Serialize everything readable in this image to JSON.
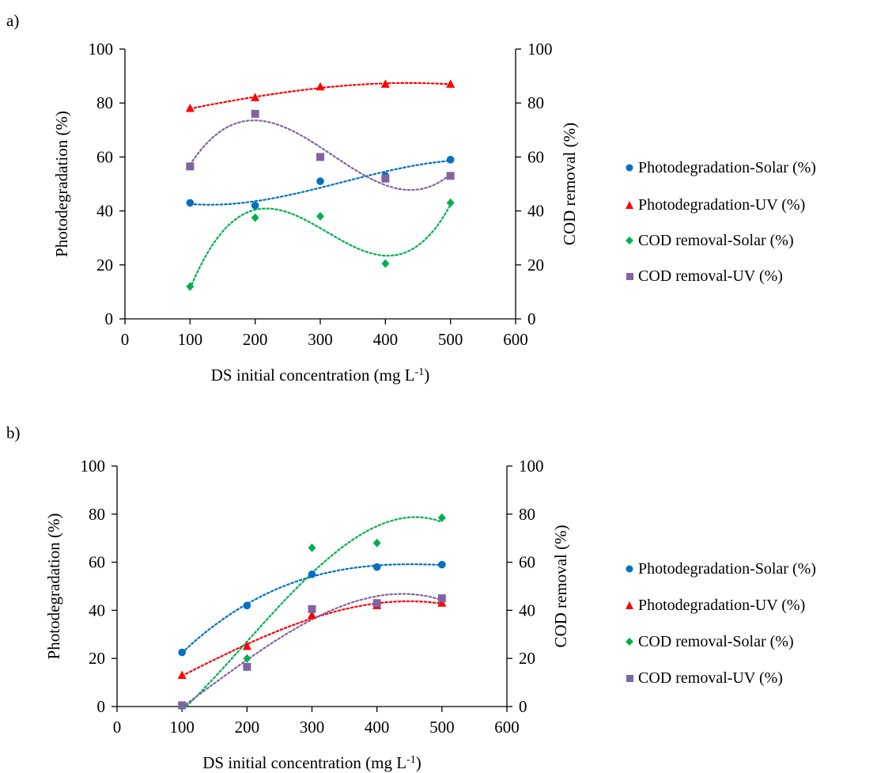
{
  "panels": [
    {
      "label": "a)"
    },
    {
      "label": "b)"
    }
  ],
  "legend": {
    "items": [
      {
        "label": "Photodegradation-Solar (%)",
        "color": "#0070c0",
        "marker": "circle"
      },
      {
        "label": "Photodegradation-UV (%)",
        "color": "#ff0000",
        "marker": "triangle"
      },
      {
        "label": "COD removal-Solar (%)",
        "color": "#00b050",
        "marker": "diamond"
      },
      {
        "label": "COD removal-UV (%)",
        "color": "#8064a2",
        "marker": "square"
      }
    ]
  },
  "chart_data": [
    {
      "type": "scatter",
      "panel": "a)",
      "xlabel": "DS initial concentration (mg L",
      "xlabel_sup": "-1",
      "xlabel_end": ")",
      "ylabel": "Photodegradation  (%)",
      "y2label": "COD removal (%)",
      "xlim": [
        0,
        600
      ],
      "ylim": [
        0,
        100
      ],
      "y2lim": [
        0,
        100
      ],
      "x_ticks": [
        "0",
        "100",
        "200",
        "300",
        "400",
        "500",
        "600"
      ],
      "y_ticks": [
        "0",
        "20",
        "40",
        "60",
        "80",
        "100"
      ],
      "y2_ticks": [
        "0",
        "20",
        "40",
        "60",
        "80",
        "100"
      ],
      "trendline": "polynomial (dotted)",
      "grid": false,
      "legend_position": "right",
      "series": [
        {
          "name": "Photodegradation-Solar (%)",
          "axis": "left",
          "color": "#0070c0",
          "marker": "circle",
          "x": [
            100,
            200,
            300,
            400,
            500
          ],
          "y": [
            43,
            42,
            51,
            53,
            59
          ]
        },
        {
          "name": "Photodegradation-UV (%)",
          "axis": "left",
          "color": "#ff0000",
          "marker": "triangle",
          "x": [
            100,
            200,
            300,
            400,
            500
          ],
          "y": [
            78,
            82,
            86,
            87,
            87
          ]
        },
        {
          "name": "COD removal-Solar (%)",
          "axis": "right",
          "color": "#00b050",
          "marker": "diamond",
          "x": [
            100,
            200,
            300,
            400,
            500
          ],
          "y": [
            12,
            37.5,
            38,
            20.5,
            43
          ]
        },
        {
          "name": "COD removal-UV (%)",
          "axis": "right",
          "color": "#8064a2",
          "marker": "square",
          "x": [
            100,
            200,
            300,
            400,
            500
          ],
          "y": [
            56.5,
            76,
            60,
            52,
            53
          ]
        }
      ]
    },
    {
      "type": "scatter",
      "panel": "b)",
      "xlabel": "DS initial concentration (mg L",
      "xlabel_sup": "-1",
      "xlabel_end": ")",
      "ylabel": "Photodegradation  (%)",
      "y2label": "COD removal (%)",
      "xlim": [
        0,
        600
      ],
      "ylim": [
        0,
        100
      ],
      "y2lim": [
        0,
        100
      ],
      "x_ticks": [
        "0",
        "100",
        "200",
        "300",
        "400",
        "500",
        "600"
      ],
      "y_ticks": [
        "0",
        "20",
        "40",
        "60",
        "80",
        "100"
      ],
      "y2_ticks": [
        "0",
        "20",
        "40",
        "60",
        "80",
        "100"
      ],
      "trendline": "polynomial (dotted)",
      "grid": false,
      "legend_position": "right",
      "series": [
        {
          "name": "Photodegradation-Solar (%)",
          "axis": "left",
          "color": "#0070c0",
          "marker": "circle",
          "x": [
            100,
            200,
            300,
            400,
            500
          ],
          "y": [
            22.5,
            42,
            55,
            58,
            59
          ]
        },
        {
          "name": "Photodegradation-UV (%)",
          "axis": "left",
          "color": "#ff0000",
          "marker": "triangle",
          "x": [
            100,
            200,
            300,
            400,
            500
          ],
          "y": [
            13,
            25,
            38,
            42,
            43
          ]
        },
        {
          "name": "COD removal-Solar (%)",
          "axis": "right",
          "color": "#00b050",
          "marker": "diamond",
          "x": [
            100,
            200,
            300,
            400,
            500
          ],
          "y": [
            0,
            20,
            66,
            68,
            78.5
          ]
        },
        {
          "name": "COD removal-UV (%)",
          "axis": "right",
          "color": "#8064a2",
          "marker": "square",
          "x": [
            100,
            200,
            300,
            400,
            500
          ],
          "y": [
            0.5,
            16.5,
            40.5,
            43,
            45
          ]
        }
      ]
    }
  ]
}
